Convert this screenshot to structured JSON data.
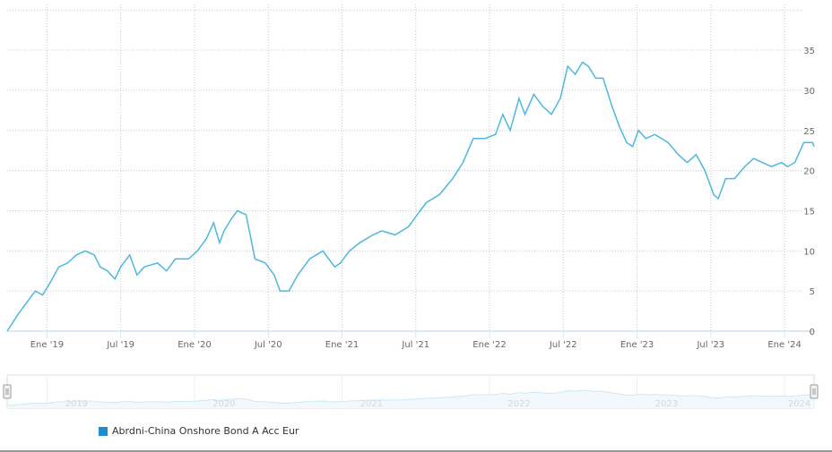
{
  "chart_data": {
    "type": "line",
    "title": "",
    "xlabel": "",
    "ylabel": "",
    "ylim": [
      0,
      40
    ],
    "y_ticks": [
      "0",
      "5",
      "10",
      "15",
      "20",
      "25",
      "30",
      "35"
    ],
    "y_tick_values": [
      0,
      5,
      10,
      15,
      20,
      25,
      30,
      35
    ],
    "x_ticks": [
      "Ene '19",
      "Jul '19",
      "Ene '20",
      "Jul '20",
      "Ene '21",
      "Jul '21",
      "Ene '22",
      "Jul '22",
      "Ene '23",
      "Jul '23",
      "Ene '24"
    ],
    "x_tick_values": [
      2019.0,
      2019.5,
      2020.0,
      2020.5,
      2021.0,
      2021.5,
      2022.0,
      2022.5,
      2023.0,
      2023.5,
      2024.0
    ],
    "xlim": [
      2018.73,
      2024.2
    ],
    "grid": true,
    "navigator_labels": [
      "2019",
      "2020",
      "2021",
      "2022",
      "2023",
      "2024"
    ],
    "navigator_label_values": [
      2019.2,
      2020.2,
      2021.2,
      2022.2,
      2023.2,
      2024.1
    ],
    "series": [
      {
        "name": "Abrdni-China Onshore Bond A Acc Eur",
        "color": "#4db8e0",
        "legend_color": "#1a8fc9",
        "points": [
          [
            2018.73,
            0
          ],
          [
            2018.8,
            2
          ],
          [
            2018.86,
            3.5
          ],
          [
            2018.92,
            5
          ],
          [
            2018.97,
            4.5
          ],
          [
            2019.02,
            6
          ],
          [
            2019.08,
            8
          ],
          [
            2019.14,
            8.5
          ],
          [
            2019.2,
            9.5
          ],
          [
            2019.26,
            10
          ],
          [
            2019.32,
            9.5
          ],
          [
            2019.36,
            8
          ],
          [
            2019.41,
            7.5
          ],
          [
            2019.46,
            6.5
          ],
          [
            2019.5,
            8
          ],
          [
            2019.56,
            9.5
          ],
          [
            2019.61,
            7
          ],
          [
            2019.66,
            8
          ],
          [
            2019.75,
            8.5
          ],
          [
            2019.81,
            7.5
          ],
          [
            2019.87,
            9
          ],
          [
            2019.96,
            9
          ],
          [
            2020.02,
            10
          ],
          [
            2020.08,
            11.5
          ],
          [
            2020.13,
            13.5
          ],
          [
            2020.17,
            11
          ],
          [
            2020.2,
            12.5
          ],
          [
            2020.25,
            14
          ],
          [
            2020.29,
            15
          ],
          [
            2020.35,
            14.5
          ],
          [
            2020.41,
            9
          ],
          [
            2020.48,
            8.5
          ],
          [
            2020.54,
            7
          ],
          [
            2020.58,
            5
          ],
          [
            2020.64,
            5
          ],
          [
            2020.7,
            7
          ],
          [
            2020.78,
            9
          ],
          [
            2020.87,
            10
          ],
          [
            2020.95,
            8
          ],
          [
            2020.99,
            8.5
          ],
          [
            2021.05,
            10
          ],
          [
            2021.12,
            11
          ],
          [
            2021.21,
            12
          ],
          [
            2021.27,
            12.5
          ],
          [
            2021.36,
            12
          ],
          [
            2021.45,
            13
          ],
          [
            2021.51,
            14.5
          ],
          [
            2021.57,
            16
          ],
          [
            2021.66,
            17
          ],
          [
            2021.75,
            19
          ],
          [
            2021.82,
            21
          ],
          [
            2021.89,
            24
          ],
          [
            2021.97,
            24
          ],
          [
            2022.04,
            24.5
          ],
          [
            2022.09,
            27
          ],
          [
            2022.14,
            25
          ],
          [
            2022.2,
            29
          ],
          [
            2022.24,
            27
          ],
          [
            2022.3,
            29.5
          ],
          [
            2022.36,
            28
          ],
          [
            2022.42,
            27
          ],
          [
            2022.48,
            29
          ],
          [
            2022.53,
            33
          ],
          [
            2022.58,
            32
          ],
          [
            2022.63,
            33.5
          ],
          [
            2022.67,
            33
          ],
          [
            2022.72,
            31.5
          ],
          [
            2022.77,
            31.5
          ],
          [
            2022.83,
            28
          ],
          [
            2022.88,
            25.5
          ],
          [
            2022.93,
            23.5
          ],
          [
            2022.97,
            23
          ],
          [
            2023.01,
            25
          ],
          [
            2023.06,
            24
          ],
          [
            2023.12,
            24.5
          ],
          [
            2023.21,
            23.5
          ],
          [
            2023.28,
            22
          ],
          [
            2023.34,
            21
          ],
          [
            2023.4,
            22
          ],
          [
            2023.46,
            20
          ],
          [
            2023.52,
            17
          ],
          [
            2023.55,
            16.5
          ],
          [
            2023.6,
            19
          ],
          [
            2023.66,
            19
          ],
          [
            2023.73,
            20.5
          ],
          [
            2023.79,
            21.5
          ],
          [
            2023.85,
            21
          ],
          [
            2023.91,
            20.5
          ],
          [
            2023.98,
            21
          ],
          [
            2024.02,
            20.5
          ],
          [
            2024.07,
            21
          ],
          [
            2024.13,
            23.5
          ],
          [
            2024.19,
            23.5
          ],
          [
            2024.2,
            23
          ]
        ]
      }
    ]
  }
}
